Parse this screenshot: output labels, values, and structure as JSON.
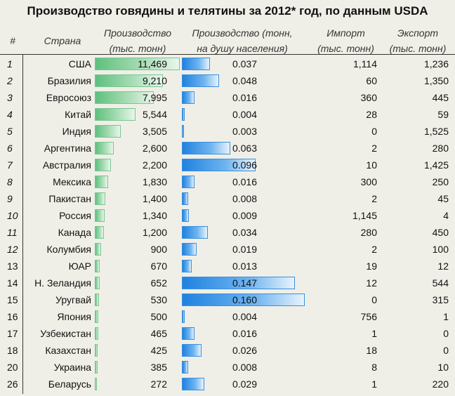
{
  "title": "Производство говядины и телятины за 2012* год, по данным USDA",
  "headers": {
    "rank": "#",
    "country": "Страна",
    "production_l1": "Производство",
    "production_l2": "(тыс. тонн)",
    "per_capita_l1": "Производство (тонн,",
    "per_capita_l2": "на душу населения)",
    "import_l1": "Импорт",
    "import_l2": "(тыс. тонн)",
    "export_l1": "Экспорт",
    "export_l2": "(тыс. тонн)"
  },
  "colors": {
    "production_bar": "#5ec07e",
    "per_capita_bar": "#1f82e0",
    "background": "#f0efe7"
  },
  "chart_data": {
    "type": "table",
    "title": "Производство говядины и телятины за 2012* год, по данным USDA",
    "columns": [
      "#",
      "Страна",
      "Производство (тыс. тонн)",
      "Производство (тонн, на душу населения)",
      "Импорт (тыс. тонн)",
      "Экспорт (тыс. тонн)"
    ],
    "production_max": 11469,
    "per_capita_max": 0.16,
    "rows": [
      {
        "rank": "1",
        "country": "США",
        "production": "11,469",
        "production_value": 11469,
        "per_capita": "0.037",
        "per_capita_value": 0.037,
        "import": "1,114",
        "export": "1,236"
      },
      {
        "rank": "2",
        "country": "Бразилия",
        "production": "9,210",
        "production_value": 9210,
        "per_capita": "0.048",
        "per_capita_value": 0.048,
        "import": "60",
        "export": "1,350"
      },
      {
        "rank": "3",
        "country": "Евросоюз",
        "production": "7,995",
        "production_value": 7995,
        "per_capita": "0.016",
        "per_capita_value": 0.016,
        "import": "360",
        "export": "445"
      },
      {
        "rank": "4",
        "country": "Китай",
        "production": "5,544",
        "production_value": 5544,
        "per_capita": "0.004",
        "per_capita_value": 0.004,
        "import": "28",
        "export": "59"
      },
      {
        "rank": "5",
        "country": "Индия",
        "production": "3,505",
        "production_value": 3505,
        "per_capita": "0.003",
        "per_capita_value": 0.003,
        "import": "0",
        "export": "1,525"
      },
      {
        "rank": "6",
        "country": "Аргентина",
        "production": "2,600",
        "production_value": 2600,
        "per_capita": "0.063",
        "per_capita_value": 0.063,
        "import": "2",
        "export": "280"
      },
      {
        "rank": "7",
        "country": "Австралия",
        "production": "2,200",
        "production_value": 2200,
        "per_capita": "0.096",
        "per_capita_value": 0.096,
        "import": "10",
        "export": "1,425"
      },
      {
        "rank": "8",
        "country": "Мексика",
        "production": "1,830",
        "production_value": 1830,
        "per_capita": "0.016",
        "per_capita_value": 0.016,
        "import": "300",
        "export": "250"
      },
      {
        "rank": "9",
        "country": "Пакистан",
        "production": "1,400",
        "production_value": 1400,
        "per_capita": "0.008",
        "per_capita_value": 0.008,
        "import": "2",
        "export": "45"
      },
      {
        "rank": "10",
        "country": "Россия",
        "production": "1,340",
        "production_value": 1340,
        "per_capita": "0.009",
        "per_capita_value": 0.009,
        "import": "1,145",
        "export": "4"
      },
      {
        "rank": "11",
        "country": "Канада",
        "production": "1,200",
        "production_value": 1200,
        "per_capita": "0.034",
        "per_capita_value": 0.034,
        "import": "280",
        "export": "450"
      },
      {
        "rank": "12",
        "country": "Колумбия",
        "production": "900",
        "production_value": 900,
        "per_capita": "0.019",
        "per_capita_value": 0.019,
        "import": "2",
        "export": "100"
      },
      {
        "rank": "13",
        "country": "ЮАР",
        "production": "670",
        "production_value": 670,
        "per_capita": "0.013",
        "per_capita_value": 0.013,
        "import": "19",
        "export": "12"
      },
      {
        "rank": "14",
        "country": "Н. Зеландия",
        "production": "652",
        "production_value": 652,
        "per_capita": "0.147",
        "per_capita_value": 0.147,
        "import": "12",
        "export": "544"
      },
      {
        "rank": "15",
        "country": "Уругвай",
        "production": "530",
        "production_value": 530,
        "per_capita": "0.160",
        "per_capita_value": 0.16,
        "import": "0",
        "export": "315"
      },
      {
        "rank": "16",
        "country": "Япония",
        "production": "500",
        "production_value": 500,
        "per_capita": "0.004",
        "per_capita_value": 0.004,
        "import": "756",
        "export": "1"
      },
      {
        "rank": "17",
        "country": "Узбекистан",
        "production": "465",
        "production_value": 465,
        "per_capita": "0.016",
        "per_capita_value": 0.016,
        "import": "1",
        "export": "0"
      },
      {
        "rank": "18",
        "country": "Казахстан",
        "production": "425",
        "production_value": 425,
        "per_capita": "0.026",
        "per_capita_value": 0.026,
        "import": "18",
        "export": "0"
      },
      {
        "rank": "20",
        "country": "Украина",
        "production": "385",
        "production_value": 385,
        "per_capita": "0.008",
        "per_capita_value": 0.008,
        "import": "8",
        "export": "10"
      },
      {
        "rank": "26",
        "country": "Беларусь",
        "production": "272",
        "production_value": 272,
        "per_capita": "0.029",
        "per_capita_value": 0.029,
        "import": "1",
        "export": "220"
      }
    ]
  }
}
